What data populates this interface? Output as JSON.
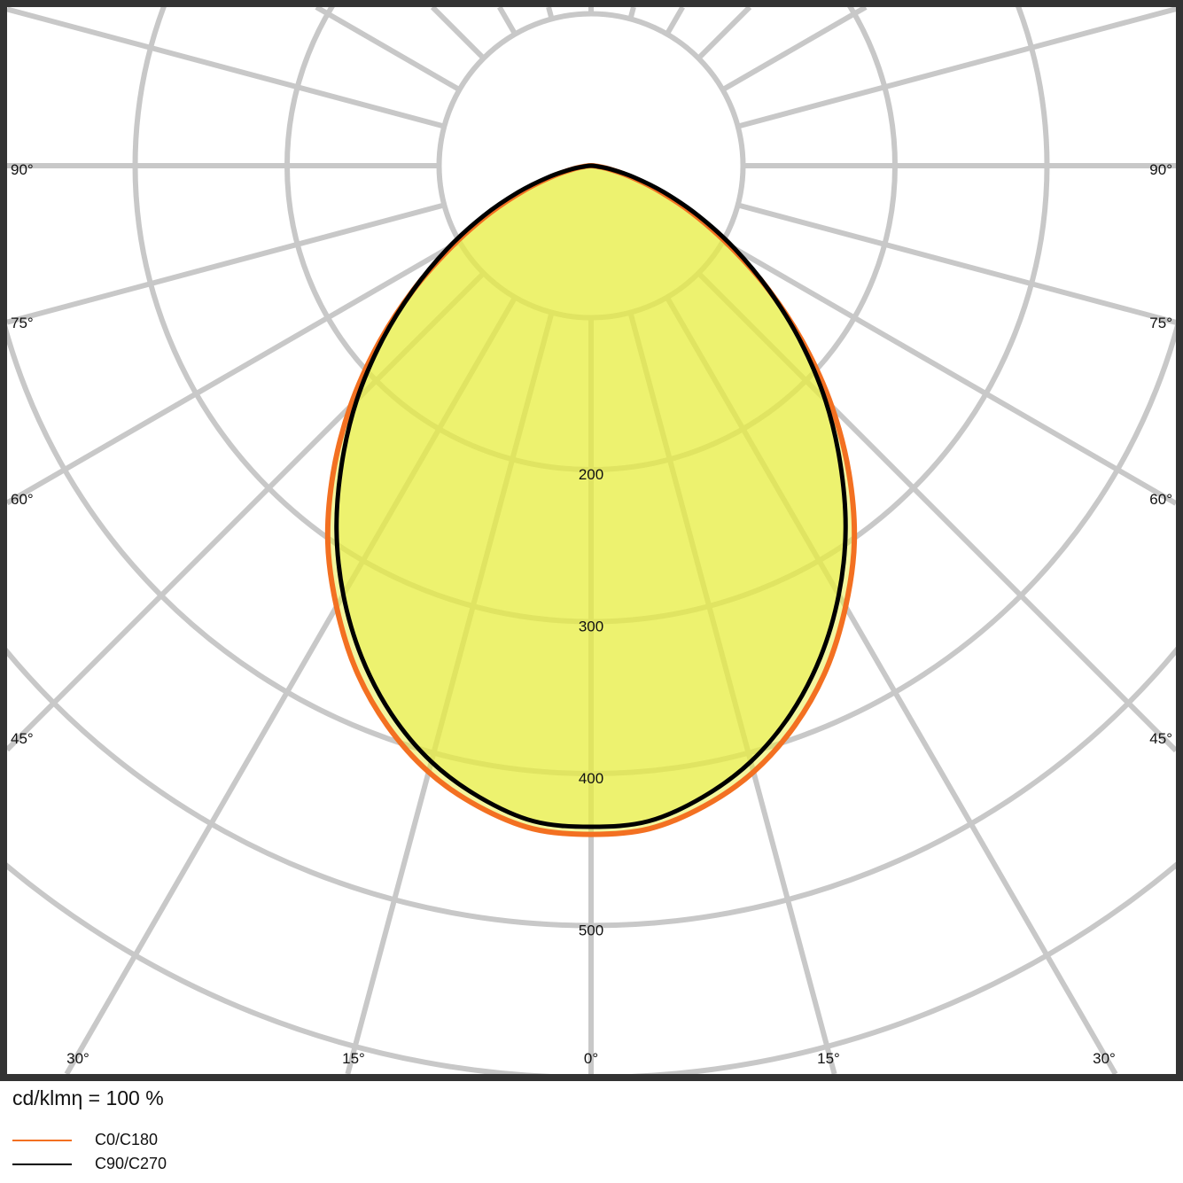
{
  "chart_data": {
    "type": "polar-line",
    "title": "",
    "unit_label": "cd/klmη = 100 %",
    "radial_ticks": [
      100,
      200,
      300,
      400,
      500,
      600
    ],
    "radial_tick_labels": [
      "200",
      "300",
      "400",
      "500"
    ],
    "angle_labels_side": [
      "90°",
      "75°",
      "60°",
      "45°"
    ],
    "angle_labels_bottom": [
      "30°",
      "15°",
      "0°",
      "15°",
      "30°"
    ],
    "grid": true,
    "angles_deg": [
      0,
      5,
      10,
      15,
      20,
      25,
      30,
      35,
      40,
      45,
      50,
      55,
      60,
      65,
      70,
      75,
      80,
      85,
      90
    ],
    "series": [
      {
        "name": "C0/C180",
        "color": "#f37021",
        "values": [
          440,
          438,
          428,
          413,
          392,
          366,
          335,
          302,
          264,
          224,
          183,
          143,
          105,
          73,
          46,
          25,
          11,
          3,
          0
        ]
      },
      {
        "name": "C90/C270",
        "color": "#000000",
        "values": [
          435,
          433,
          422,
          406,
          384,
          357,
          326,
          292,
          255,
          218,
          180,
          143,
          109,
          78,
          51,
          29,
          13,
          3,
          0
        ]
      }
    ],
    "fill_color": "#e8ee40",
    "grid_color": "#c8c8c8",
    "legend_position": "bottom-left"
  }
}
